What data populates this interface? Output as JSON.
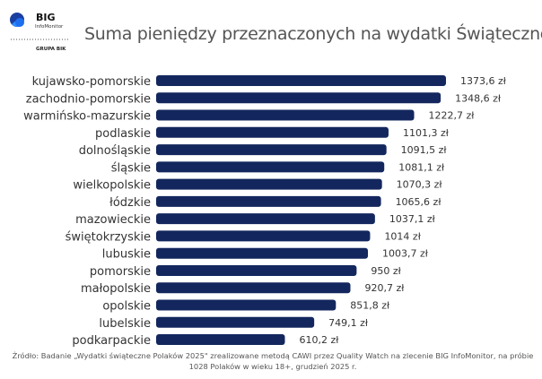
{
  "logo": {
    "brand": "BIG",
    "sub": "InfoMonitor",
    "group": "GRUPA BIK"
  },
  "title": "Suma pieniędzy przeznaczonych na wydatki Świąteczne",
  "chart_data": {
    "type": "bar",
    "orientation": "horizontal",
    "title": "Suma pieniędzy przeznaczonych na wydatki Świąteczne",
    "unit": "zł",
    "categories": [
      "kujawsko-pomorskie",
      "zachodnio-pomorskie",
      "warmińsko-mazurskie",
      "podlaskie",
      "dolnośląskie",
      "śląskie",
      "wielkopolskie",
      "łódzkie",
      "mazowieckie",
      "świętokrzyskie",
      "lubuskie",
      "pomorskie",
      "małopolskie",
      "opolskie",
      "lubelskie",
      "podkarpackie"
    ],
    "values": [
      1373.6,
      1348.6,
      1222.7,
      1101.3,
      1091.5,
      1081.1,
      1070.3,
      1065.6,
      1037.1,
      1014,
      1003.7,
      950,
      920.7,
      851.8,
      749.1,
      610.2
    ],
    "value_labels": [
      "1373,6 zł",
      "1348,6 zł",
      "1222,7 zł",
      "1101,3 zł",
      "1091,5 zł",
      "1081,1 zł",
      "1070,3 zł",
      "1065,6 zł",
      "1037,1 zł",
      "1014 zł",
      "1003,7 zł",
      "950 zł",
      "920,7 zł",
      "851,8 zł",
      "749,1 zł",
      "610,2 zł"
    ],
    "xlim": [
      0,
      1373.6
    ],
    "grid": false,
    "bar_color": "#13275e"
  },
  "source": "Źródło: Badanie „Wydatki świąteczne Polaków 2025\" zrealizowane metodą CAWI przez Quality Watch na zlecenie BIG InfoMonitor, na próbie 1028 Polaków w wieku 18+, grudzień 2025 r."
}
